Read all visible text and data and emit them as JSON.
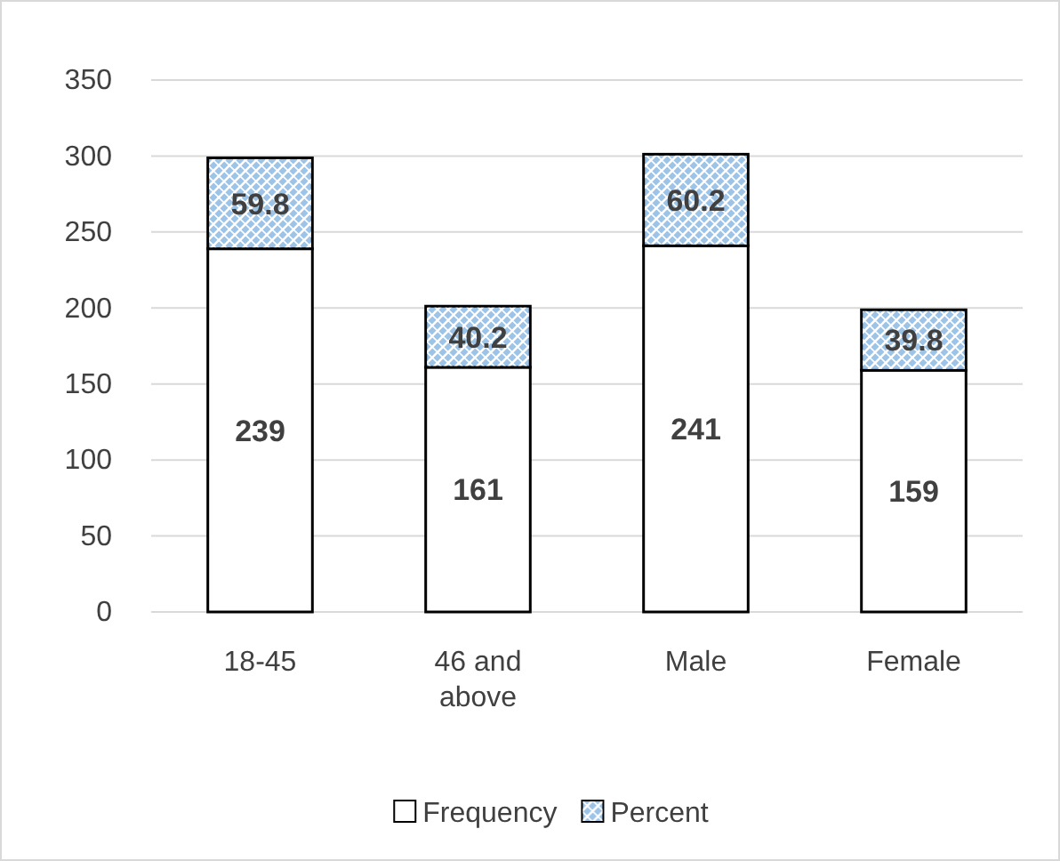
{
  "chart_data": {
    "type": "bar",
    "stacked": true,
    "categories": [
      "18-45",
      "46 and above",
      "Male",
      "Female"
    ],
    "series": [
      {
        "name": "Frequency",
        "color": "#ffffff",
        "values": [
          239,
          161,
          241,
          159
        ]
      },
      {
        "name": "Percent",
        "color": "#9dc3e6",
        "values": [
          59.8,
          40.2,
          60.2,
          39.8
        ]
      }
    ],
    "ylim": [
      0,
      350
    ],
    "yticks": [
      0,
      50,
      100,
      150,
      200,
      250,
      300,
      350
    ],
    "grid": "y",
    "legend": "bottom",
    "data_labels": true
  }
}
